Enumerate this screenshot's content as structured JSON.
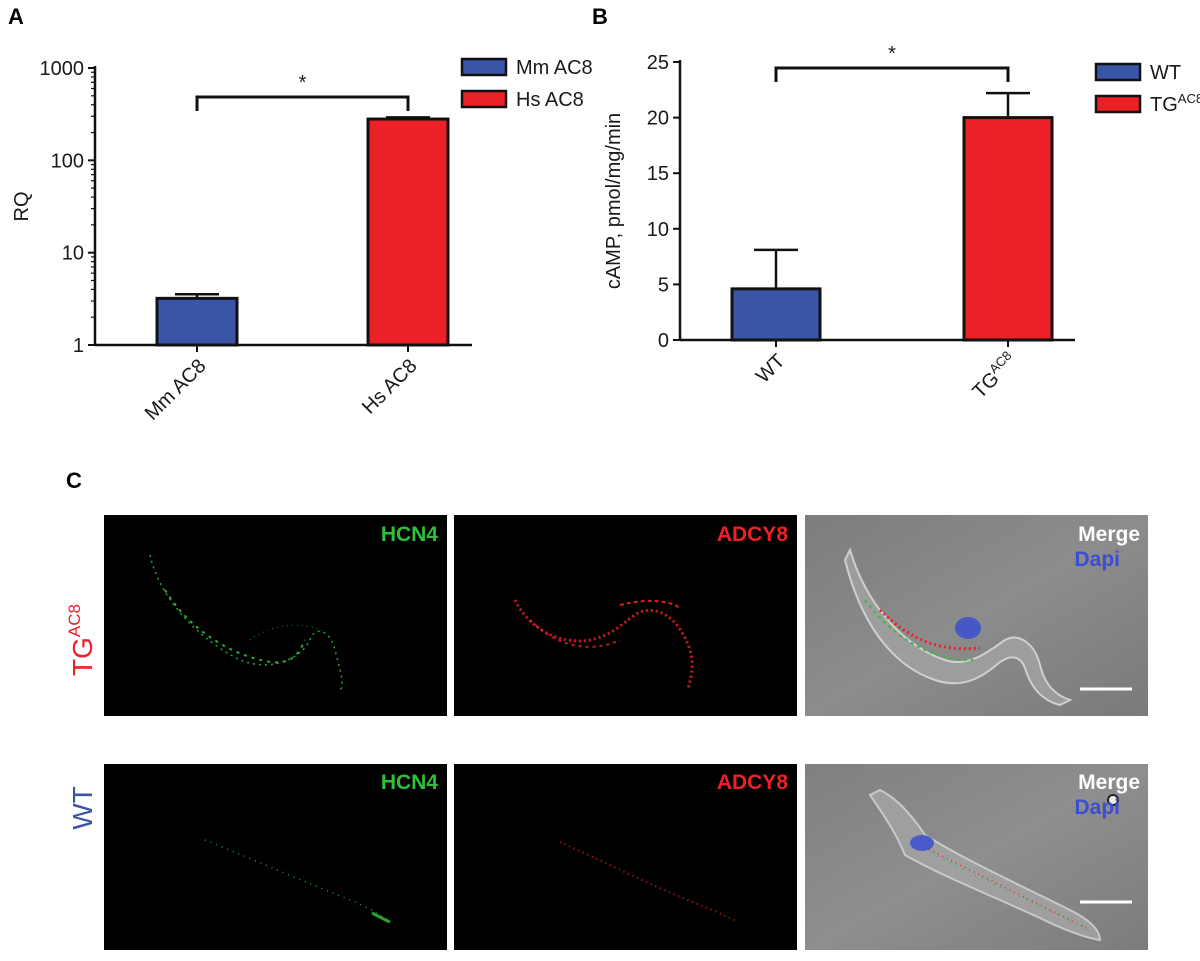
{
  "panels": {
    "a": "A",
    "b": "B",
    "c": "C"
  },
  "colors": {
    "blue": "#3a55a8",
    "red": "#ec2027",
    "black": "#111111",
    "green": "#2fbf3a",
    "merge": "#ffffff",
    "dapi": "#3a4fd0"
  },
  "chart_data": [
    {
      "type": "bar",
      "log_scale": true,
      "categories": [
        "Mm AC8",
        "Hs AC8"
      ],
      "values": [
        3.2,
        280
      ],
      "errors": [
        0.35,
        12
      ],
      "colors": [
        "#3a55a8",
        "#ec2027"
      ],
      "ylabel": "RQ",
      "xlabel": "",
      "ylim": [
        1,
        1000
      ],
      "yticks": [
        1,
        10,
        100,
        1000
      ],
      "ytick_labels": [
        "1",
        "10",
        "100",
        "1000"
      ],
      "legend": [
        "Mm AC8",
        "Hs AC8"
      ],
      "legend_position": "top-right",
      "significance": "*"
    },
    {
      "type": "bar",
      "log_scale": false,
      "categories": [
        "WT",
        "TG"
      ],
      "category_sup": [
        "",
        "AC8"
      ],
      "values": [
        4.6,
        20.0
      ],
      "errors": [
        3.5,
        2.2
      ],
      "colors": [
        "#3a55a8",
        "#ec2027"
      ],
      "ylabel": "cAMP, pmol/mg/min",
      "xlabel": "",
      "ylim": [
        0,
        25
      ],
      "yticks": [
        0,
        5,
        10,
        15,
        20,
        25
      ],
      "ytick_labels": [
        "0",
        "5",
        "10",
        "15",
        "20",
        "25"
      ],
      "legend": [
        "WT",
        "TG"
      ],
      "legend_sup": [
        "",
        "AC8"
      ],
      "legend_position": "top-right",
      "significance": "*"
    }
  ],
  "micrographs": {
    "rows": [
      {
        "label": "TG",
        "label_sup": "AC8",
        "label_color": "#ec2027"
      },
      {
        "label": "WT",
        "label_sup": "",
        "label_color": "#3a55a8"
      }
    ],
    "channel_labels": {
      "hcn4": "HCN4",
      "adcy8": "ADCY8",
      "merge": "Merge",
      "dapi": "Dapi"
    }
  }
}
